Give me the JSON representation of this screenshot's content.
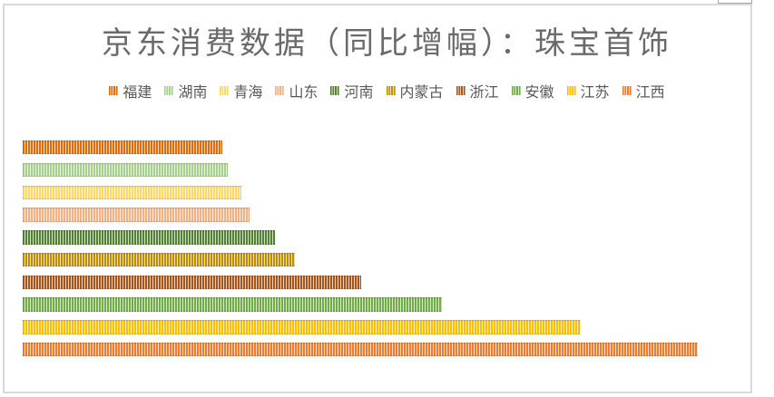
{
  "window": {
    "background": "#ffffff",
    "frame_border_color": "#d9d9d9",
    "clipped_box_border_color": "#a6a6a6"
  },
  "chart_data": {
    "type": "bar",
    "orientation": "horizontal",
    "title": "京东消费数据（同比增幅）：珠宝首饰",
    "title_color": "#6a6a6a",
    "legend_position": "top",
    "legend_text_color": "#595959",
    "axes_hidden": true,
    "pattern": "vertical-stripes",
    "value_note": "no axis labels visible; values estimated as percent of longest bar (江西 = 100)",
    "categories": [
      "福建",
      "湖南",
      "青海",
      "山东",
      "河南",
      "内蒙古",
      "浙江",
      "安徽",
      "江苏",
      "江西"
    ],
    "ids": [
      "fujian",
      "hunan",
      "qinghai",
      "shandong",
      "henan",
      "neimenggu",
      "zhejiang",
      "anhui",
      "jiangsu",
      "jiangxi"
    ],
    "values": [
      29.6,
      30.4,
      32.4,
      33.6,
      37.4,
      40.3,
      50.1,
      62.1,
      82.5,
      100
    ],
    "colors": [
      "#e36c09",
      "#a9d08e",
      "#ffd966",
      "#f4b183",
      "#548235",
      "#bf8f00",
      "#a9551a",
      "#70ad47",
      "#ffc000",
      "#ed7d31"
    ],
    "light_colors": [
      "#f8dac1",
      "#e9f3e3",
      "#fff5d9",
      "#fcebe0",
      "#d4e0cc",
      "#efe3bf",
      "#ead5c5",
      "#dbead1",
      "#ffefbf",
      "#fadecb"
    ]
  }
}
